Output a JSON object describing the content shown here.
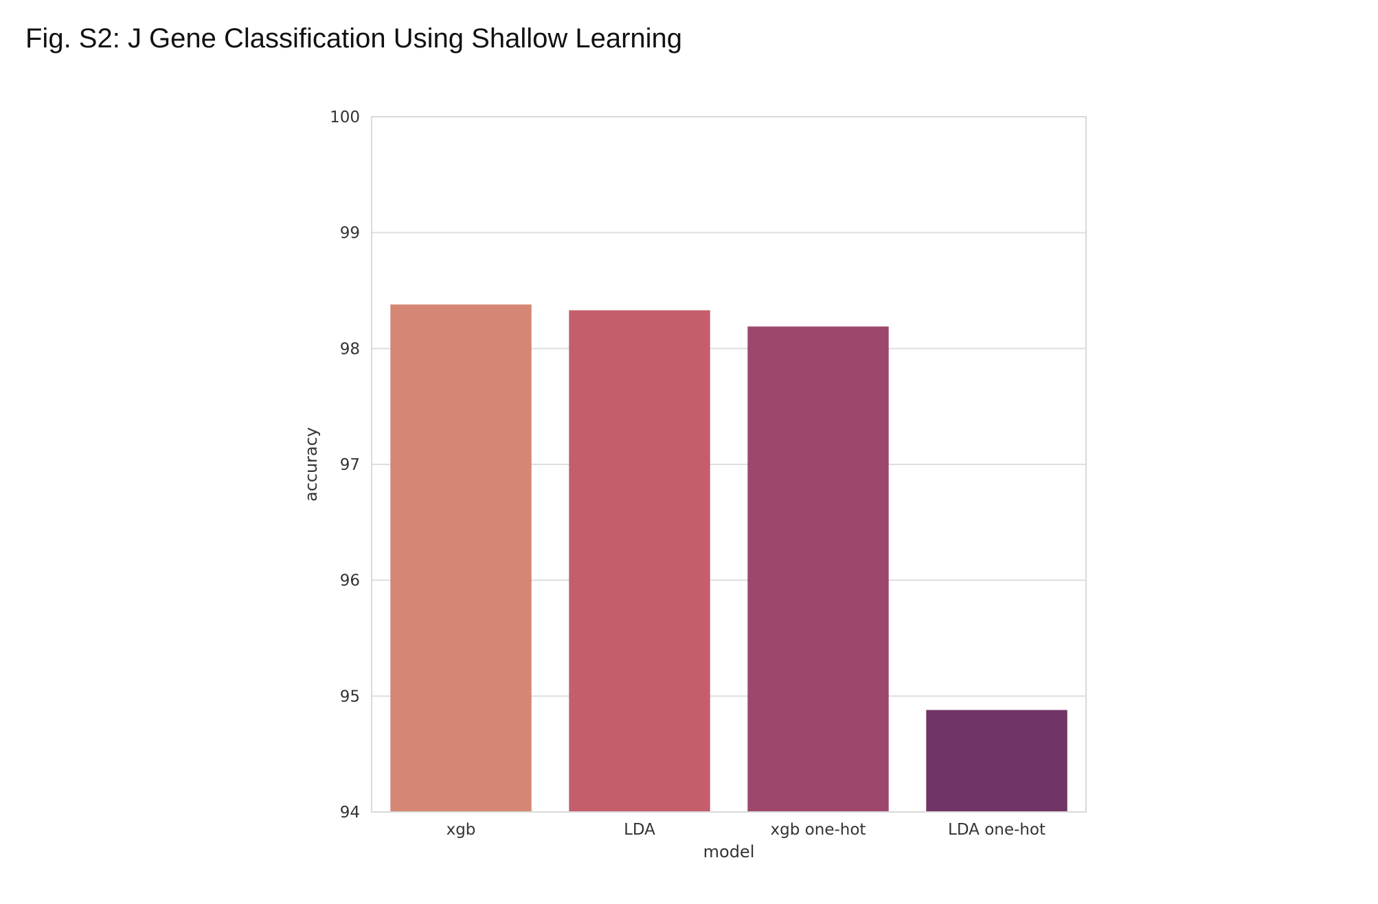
{
  "figure": {
    "title": "Fig. S2: J Gene Classification Using Shallow Learning"
  },
  "chart_data": {
    "type": "bar",
    "categories": [
      "xgb",
      "LDA",
      "xgb one-hot",
      "LDA one-hot"
    ],
    "values": [
      98.38,
      98.33,
      98.19,
      94.88
    ],
    "colors": [
      "#d58675",
      "#c45e6a",
      "#9e476c",
      "#703566"
    ],
    "xlabel": "model",
    "ylabel": "accuracy",
    "ylim": [
      94,
      100
    ],
    "yticks": [
      94,
      95,
      96,
      97,
      98,
      99,
      100
    ],
    "grid": "horizontal"
  }
}
